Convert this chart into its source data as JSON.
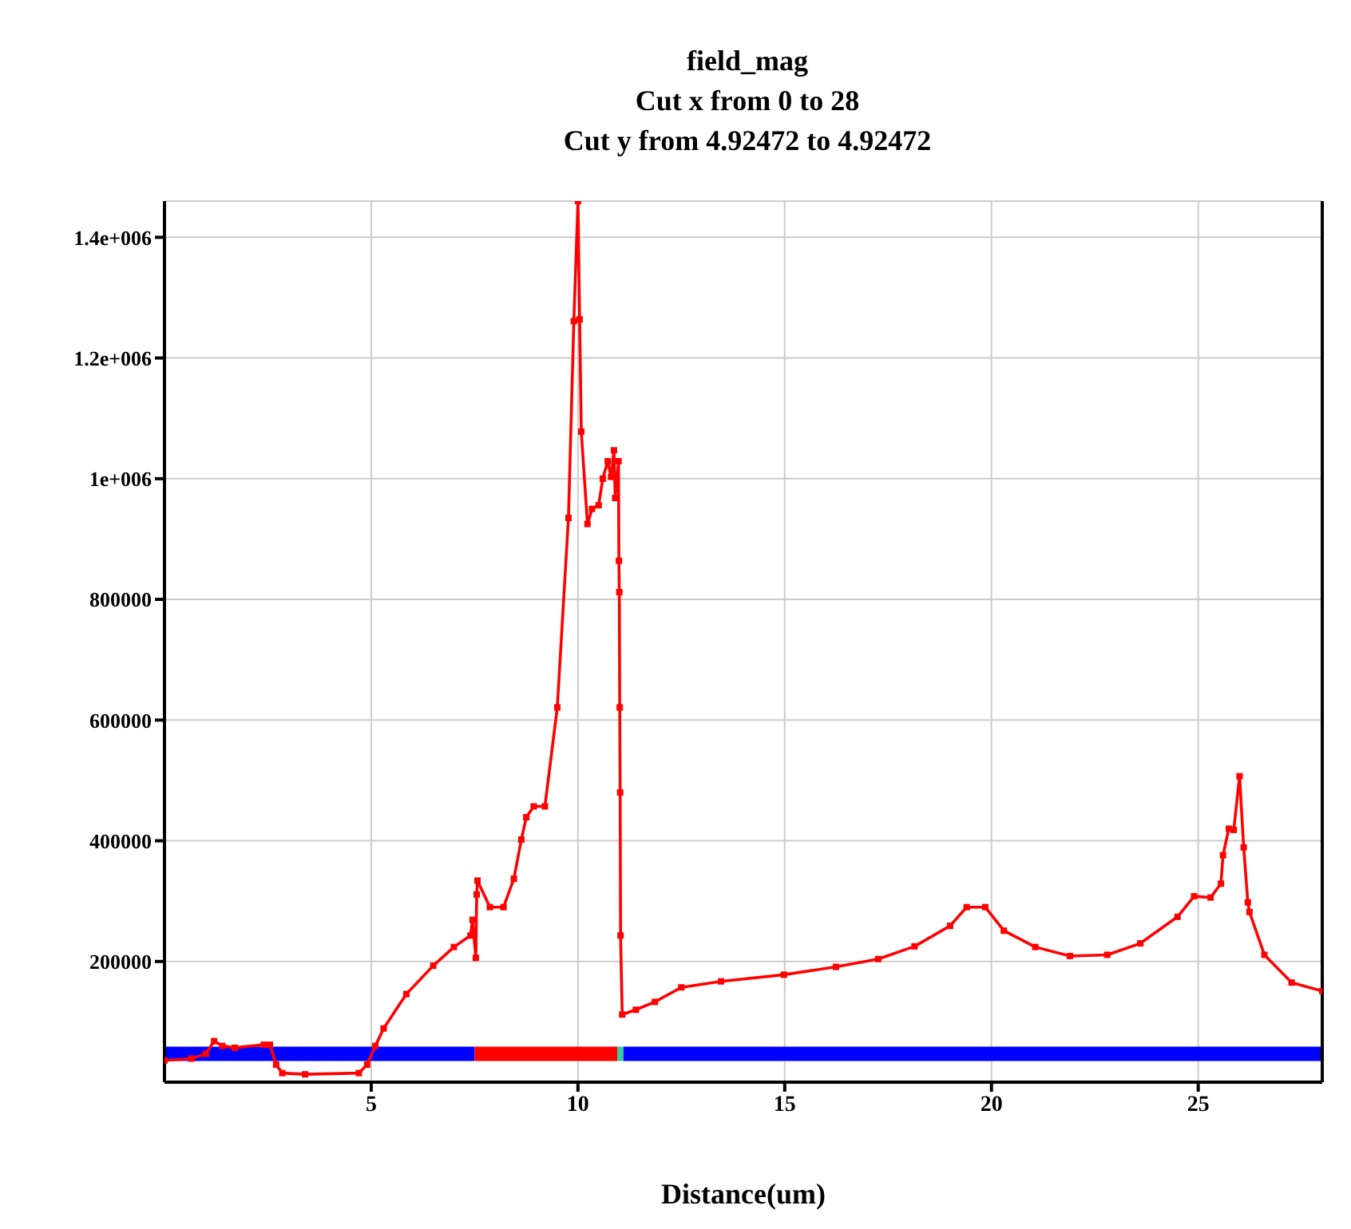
{
  "chart_data": {
    "type": "line",
    "title": "field_mag",
    "subtitle": "Cut x from 0 to 28\nCut y from 4.92472 to 4.92472",
    "xlabel": "Distance(um)",
    "xlim": [
      0,
      28
    ],
    "xticks": [
      5,
      10,
      15,
      20,
      25
    ],
    "ylim": [
      0,
      1460000
    ],
    "yticks": [
      200000,
      400000,
      600000,
      800000,
      {
        "value": 1000000,
        "label": "1e+006"
      },
      {
        "value": 1200000,
        "label": "1.2e+006"
      },
      {
        "value": 1400000,
        "label": "1.4e+006"
      }
    ],
    "grid": true,
    "marker": "square",
    "line_style": "solid",
    "series": [
      {
        "color": "#0000ff",
        "marker": "none",
        "x": [
          0,
          7.5
        ],
        "values": [
          47000,
          47000
        ]
      },
      {
        "color": "#ff0000",
        "marker": "none",
        "x": [
          7.5,
          10.95
        ],
        "values": [
          47000,
          47000
        ]
      },
      {
        "color": "#33cc99",
        "marker": "none",
        "x": [
          10.95,
          11.1
        ],
        "values": [
          47000,
          47000
        ]
      },
      {
        "color": "#0000ff",
        "marker": "none",
        "x": [
          11.1,
          28
        ],
        "values": [
          47000,
          47000
        ]
      },
      {
        "color": "#ff0000",
        "x": [
          0,
          0.65,
          1.0,
          1.2,
          1.4,
          1.7,
          2.4,
          2.55,
          2.7,
          2.85,
          3.4,
          4.7,
          4.9,
          5.1,
          5.3,
          5.85,
          6.5,
          7.0,
          7.4,
          7.45,
          7.53,
          7.55,
          7.57,
          7.87,
          8.2,
          8.45,
          8.63,
          8.75,
          8.93,
          9.2,
          9.5,
          9.77,
          9.9,
          10.0,
          10.04,
          10.08,
          10.23,
          10.34,
          10.5,
          10.6,
          10.72,
          10.8,
          10.87,
          10.9,
          10.98,
          10.99,
          11.0,
          11.01,
          11.02,
          11.03,
          11.07,
          11.4,
          11.86,
          12.5,
          13.46,
          14.98,
          16.24,
          17.26,
          18.14,
          19.0,
          19.4,
          19.85,
          20.3,
          21.06,
          21.9,
          22.8,
          23.6,
          24.5,
          24.9,
          25.3,
          25.55,
          25.6,
          25.74,
          25.86,
          26.0,
          26.1,
          26.2,
          26.24,
          26.6,
          27.26,
          28
        ],
        "values": [
          36000,
          39000,
          47000,
          68000,
          60000,
          57000,
          62000,
          62000,
          29000,
          15000,
          13000,
          15000,
          29000,
          60000,
          89000,
          146000,
          193000,
          224000,
          243000,
          269000,
          206000,
          311000,
          334000,
          290000,
          290000,
          337000,
          402000,
          439000,
          457000,
          457000,
          621000,
          935000,
          1261000,
          1460000,
          1264000,
          1078000,
          925000,
          950000,
          956000,
          1000000,
          1029000,
          1003000,
          1047000,
          968000,
          1029000,
          864000,
          812000,
          621000,
          480000,
          243000,
          112000,
          120000,
          133000,
          157000,
          167000,
          178000,
          191000,
          204000,
          225000,
          259000,
          290000,
          290000,
          251000,
          224000,
          209000,
          211000,
          230000,
          274000,
          308000,
          306000,
          329000,
          376000,
          420000,
          418000,
          507000,
          389000,
          298000,
          282000,
          211000,
          165000,
          151000
        ]
      }
    ]
  }
}
